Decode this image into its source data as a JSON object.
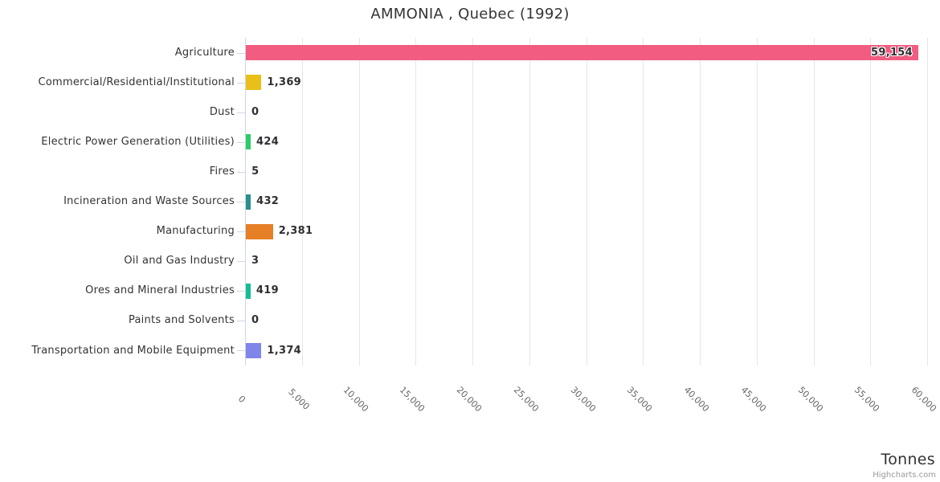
{
  "chart_data": {
    "type": "bar",
    "orientation": "horizontal",
    "title": "AMMONIA , Quebec (1992)",
    "categories": [
      "Agriculture",
      "Commercial/Residential/Institutional",
      "Dust",
      "Electric Power Generation (Utilities)",
      "Fires",
      "Incineration and Waste Sources",
      "Manufacturing",
      "Oil and Gas Industry",
      "Ores and Mineral Industries",
      "Paints and Solvents",
      "Transportation and Mobile Equipment"
    ],
    "values": [
      59154,
      1369,
      0,
      424,
      5,
      432,
      2381,
      3,
      419,
      0,
      1374
    ],
    "value_labels": [
      "59,154",
      "1,369",
      "0",
      "424",
      "5",
      "432",
      "2,381",
      "3",
      "419",
      "0",
      "1,374"
    ],
    "bar_colors": [
      "#f15c80",
      "#e8c019",
      null,
      "#2ecc66",
      null,
      "#2b8f8f",
      "#e67f26",
      null,
      "#15bd95",
      null,
      "#8085e9"
    ],
    "xlabel": "Tonnes",
    "ylabel": "",
    "xlim": [
      0,
      60000
    ],
    "x_tick_interval": 5000,
    "x_ticks": [
      "0",
      "5,000",
      "10,000",
      "15,000",
      "20,000",
      "25,000",
      "30,000",
      "35,000",
      "40,000",
      "45,000",
      "50,000",
      "55,000",
      "60,000"
    ],
    "grid": true,
    "legend": false,
    "credit": "Highcharts.com"
  },
  "theme": {
    "background": "#ffffff",
    "grid_color": "#e6e6e6",
    "axis_line_color": "#ccd6eb",
    "tick_color": "#ccd6eb",
    "title_color": "#333333",
    "category_label_color": "#333333",
    "tick_label_color": "#666666",
    "data_label_color": "#2f2f33",
    "axis_title_color": "#333333",
    "credit_color": "#999999"
  }
}
